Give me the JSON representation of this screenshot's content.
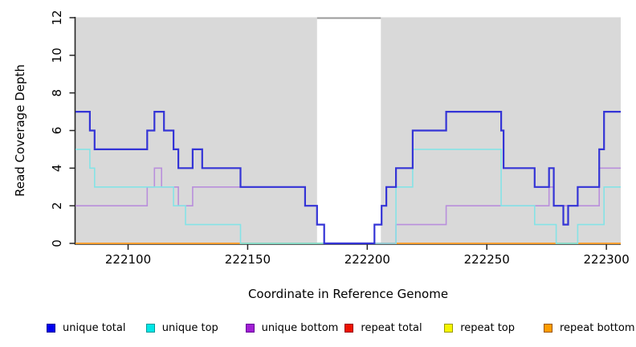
{
  "axes": {
    "x_label": "Coordinate in Reference Genome",
    "y_label": "Read Coverage Depth",
    "x_ticks": [
      222100,
      222150,
      222200,
      222250,
      222300
    ],
    "y_ticks": [
      0,
      2,
      4,
      6,
      8,
      10,
      12
    ]
  },
  "legend": {
    "items": [
      {
        "label": "unique total",
        "color": "#0000ee",
        "border": "#000099"
      },
      {
        "label": "unique top",
        "color": "#00e6e6",
        "border": "#009999"
      },
      {
        "label": "unique bottom",
        "color": "#a11fd4",
        "border": "#660099"
      },
      {
        "label": "repeat total",
        "color": "#ee1100",
        "border": "#990000"
      },
      {
        "label": "repeat top",
        "color": "#f5f500",
        "border": "#999900"
      },
      {
        "label": "repeat bottom",
        "color": "#ff9d00",
        "border": "#995500"
      }
    ]
  },
  "chart_data": {
    "type": "line",
    "subtype": "step-coverage",
    "title": "",
    "xlabel": "Coordinate in Reference Genome",
    "ylabel": "Read Coverage Depth",
    "x_range": [
      222078,
      222306
    ],
    "y_range": [
      0,
      12
    ],
    "grid": false,
    "legend_position": "bottom",
    "plot_background": "#d9d9d9",
    "no_data_band": {
      "from": 222179,
      "to": 222205.7,
      "fill": "#ffffff",
      "top_line_color": "#9a9a9a"
    },
    "series": [
      {
        "name": "unique total",
        "line_color": "#3434d6",
        "width": 2.2,
        "points": [
          [
            222078,
            7
          ],
          [
            222084,
            6
          ],
          [
            222086,
            5
          ],
          [
            222108,
            6
          ],
          [
            222111,
            7
          ],
          [
            222115,
            6
          ],
          [
            222119,
            5
          ],
          [
            222121,
            4
          ],
          [
            222127,
            5
          ],
          [
            222131,
            4
          ],
          [
            222147,
            3
          ],
          [
            222174,
            2
          ],
          [
            222179,
            1
          ],
          [
            222182,
            0
          ],
          [
            222203,
            1
          ],
          [
            222206,
            2
          ],
          [
            222208,
            3
          ],
          [
            222212,
            4
          ],
          [
            222219,
            6
          ],
          [
            222233,
            7
          ],
          [
            222256,
            6
          ],
          [
            222257,
            4
          ],
          [
            222270,
            3
          ],
          [
            222276,
            4
          ],
          [
            222278,
            2
          ],
          [
            222282,
            1
          ],
          [
            222284,
            2
          ],
          [
            222288,
            3
          ],
          [
            222297,
            5
          ],
          [
            222299,
            7
          ]
        ]
      },
      {
        "name": "unique top",
        "line_color": "#85e3e6",
        "width": 1.6,
        "points": [
          [
            222078,
            5
          ],
          [
            222084,
            4
          ],
          [
            222086,
            3
          ],
          [
            222119,
            2
          ],
          [
            222124,
            1
          ],
          [
            222147,
            0
          ],
          [
            222212,
            3
          ],
          [
            222219,
            5
          ],
          [
            222256,
            2
          ],
          [
            222270,
            1
          ],
          [
            222279,
            0
          ],
          [
            222288,
            1
          ],
          [
            222299,
            3
          ]
        ]
      },
      {
        "name": "unique bottom",
        "line_color": "#b98fdc",
        "width": 1.6,
        "points": [
          [
            222078,
            2
          ],
          [
            222108,
            3
          ],
          [
            222111,
            4
          ],
          [
            222114,
            3
          ],
          [
            222121,
            2
          ],
          [
            222127,
            3
          ],
          [
            222174,
            2
          ],
          [
            222179,
            1
          ],
          [
            222182,
            0
          ],
          [
            222212,
            1
          ],
          [
            222233,
            2
          ],
          [
            222276,
            3
          ],
          [
            222278,
            2
          ],
          [
            222297,
            4
          ]
        ]
      },
      {
        "name": "repeat total",
        "line_color": "#cc4848",
        "width": 1.8,
        "points": [
          [
            222078,
            0
          ]
        ]
      },
      {
        "name": "repeat top",
        "line_color": "#f5f500",
        "width": 1.5,
        "points": [
          [
            222078,
            0
          ]
        ]
      },
      {
        "name": "repeat bottom",
        "line_color": "#ffa033",
        "width": 2,
        "points": [
          [
            222078,
            0
          ]
        ]
      }
    ],
    "baseline_overlays": [
      {
        "name": "repeat-total-visible",
        "color": "#cc4848",
        "from": 222202,
        "to": 222212,
        "width": 1.8
      },
      {
        "name": "unique-top-zero-blend",
        "color": "#7cc87c",
        "from": 222147,
        "to": 222182,
        "width": 1.8
      },
      {
        "name": "unique-top-zero-blend-right",
        "color": "#7cc87c",
        "from": 222279,
        "to": 222288,
        "width": 1.8
      }
    ]
  }
}
